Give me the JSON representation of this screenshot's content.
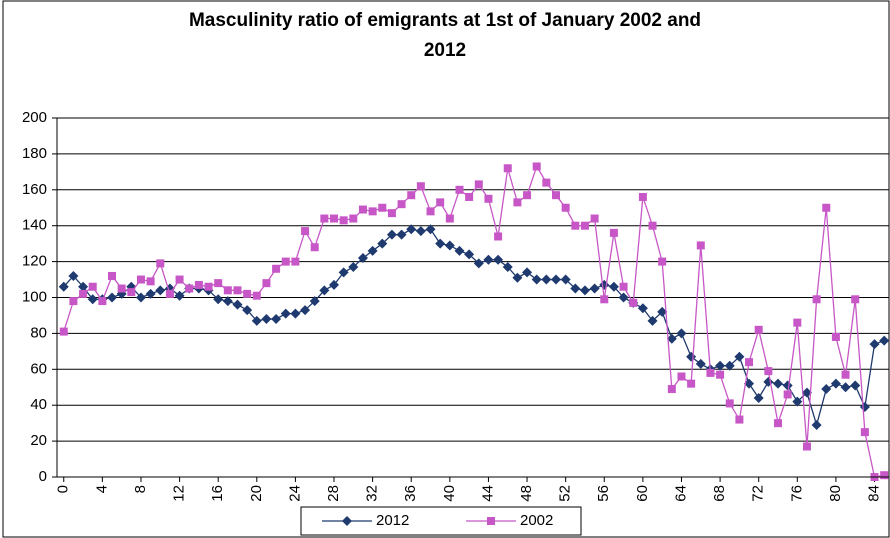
{
  "chart_data": {
    "type": "line",
    "title": "Masculinity ratio of emigrants at 1st of January 2002 and 2012",
    "x": [
      0,
      1,
      2,
      3,
      4,
      5,
      6,
      7,
      8,
      9,
      10,
      11,
      12,
      13,
      14,
      15,
      16,
      17,
      18,
      19,
      20,
      21,
      22,
      23,
      24,
      25,
      26,
      27,
      28,
      29,
      30,
      31,
      32,
      33,
      34,
      35,
      36,
      37,
      38,
      39,
      40,
      41,
      42,
      43,
      44,
      45,
      46,
      47,
      48,
      49,
      50,
      51,
      52,
      53,
      54,
      55,
      56,
      57,
      58,
      59,
      60,
      61,
      62,
      63,
      64,
      65,
      66,
      67,
      68,
      69,
      70,
      71,
      72,
      73,
      74,
      75,
      76,
      77,
      78,
      79,
      80,
      81,
      82,
      83,
      84,
      85
    ],
    "series": [
      {
        "name": "2012",
        "color": "#1f3a6e",
        "marker": "diamond",
        "values": [
          106,
          112,
          106,
          99,
          99,
          100,
          102,
          106,
          100,
          102,
          104,
          105,
          101,
          105,
          105,
          104,
          99,
          98,
          96,
          93,
          87,
          88,
          88,
          91,
          91,
          93,
          98,
          104,
          107,
          114,
          117,
          122,
          126,
          130,
          135,
          135,
          138,
          137,
          138,
          130,
          129,
          126,
          124,
          119,
          121,
          121,
          117,
          111,
          114,
          110,
          110,
          110,
          110,
          105,
          104,
          105,
          107,
          106,
          100,
          97,
          94,
          87,
          92,
          77,
          80,
          67,
          63,
          60,
          62,
          62,
          67,
          52,
          44,
          53,
          52,
          51,
          42,
          47,
          29,
          49,
          52,
          50,
          51,
          39,
          74,
          76
        ]
      },
      {
        "name": "2002",
        "color": "#c757c7",
        "marker": "square",
        "values": [
          81,
          98,
          102,
          106,
          98,
          112,
          105,
          103,
          110,
          109,
          119,
          102,
          110,
          105,
          107,
          106,
          108,
          104,
          104,
          102,
          101,
          108,
          116,
          120,
          120,
          137,
          128,
          144,
          144,
          143,
          144,
          149,
          148,
          150,
          147,
          152,
          157,
          162,
          148,
          153,
          144,
          160,
          156,
          163,
          155,
          134,
          172,
          153,
          157,
          173,
          164,
          157,
          150,
          140,
          140,
          144,
          99,
          136,
          106,
          97,
          156,
          140,
          120,
          49,
          56,
          52,
          129,
          58,
          57,
          41,
          32,
          64,
          82,
          59,
          30,
          46,
          86,
          17,
          99,
          150,
          78,
          57,
          99,
          25,
          0,
          1
        ]
      }
    ],
    "xlim": [
      -0.7,
      85.5
    ],
    "xticks": [
      0,
      4,
      8,
      12,
      16,
      20,
      24,
      28,
      32,
      36,
      40,
      44,
      48,
      52,
      56,
      60,
      64,
      68,
      72,
      76,
      80,
      84
    ],
    "ylim": [
      0,
      200
    ],
    "yticks": [
      0,
      20,
      40,
      60,
      80,
      100,
      120,
      140,
      160,
      180,
      200
    ],
    "grid": true,
    "legend": "bottom"
  }
}
